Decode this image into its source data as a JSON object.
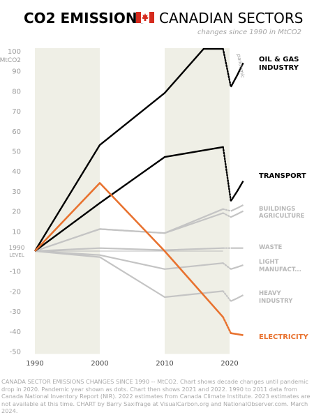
{
  "header": {
    "title_left": "CO2 EMISSIONS",
    "title_right": "CANADIAN SECTORS",
    "subtitle": "changes since 1990 in MtCO2"
  },
  "colors": {
    "dark": "#000000",
    "light": "#c4c4c4",
    "electric": "#e8722f",
    "band": "#efefe6",
    "axis_text": "#9a9a9a",
    "flag_red": "#d52b1e"
  },
  "chart_data": {
    "type": "line",
    "ylim": [
      -50,
      100
    ],
    "yticks": [
      -50,
      -40,
      -30,
      -20,
      -10,
      0,
      10,
      20,
      30,
      40,
      50,
      60,
      70,
      80,
      90,
      100
    ],
    "ytick_labels": [
      "-50",
      "-40",
      "-30",
      "-20",
      "-10",
      "0",
      "10",
      "20",
      "30",
      "40",
      "50",
      "60",
      "70",
      "80",
      "90",
      "100"
    ],
    "y_unit_label": "MtCO2",
    "zero_label_top": "1990",
    "zero_label_bottom": "LEVEL",
    "xticks": [
      "1990",
      "2000",
      "2010",
      "2020"
    ],
    "pandemic_label": "pandemic",
    "shaded_decades": [
      "1990-2000",
      "2010-2020"
    ],
    "series": [
      {
        "name": "OIL & GAS INDUSTRY",
        "group": "dark",
        "x": [
          1990,
          2000,
          2010,
          2016,
          2019
        ],
        "y": [
          0,
          53,
          79,
          101,
          101
        ],
        "pandemic_y": 82,
        "recent": [
          82,
          94
        ]
      },
      {
        "name": "TRANSPORT",
        "group": "dark",
        "x": [
          1990,
          2000,
          2010,
          2019
        ],
        "y": [
          0,
          24,
          47,
          52
        ],
        "pandemic_y": 25,
        "recent": [
          25,
          35
        ]
      },
      {
        "name": "BUILDINGS",
        "group": "light",
        "x": [
          1990,
          2000,
          2010,
          2019
        ],
        "y": [
          0,
          11,
          9,
          21
        ],
        "pandemic_y": 20,
        "recent": [
          20,
          23
        ]
      },
      {
        "name": "AGRICULTURE",
        "group": "light",
        "x": [
          1990,
          2000,
          2010,
          2019
        ],
        "y": [
          0,
          11,
          9,
          19
        ],
        "pandemic_y": 17,
        "recent": [
          17,
          20
        ]
      },
      {
        "name": "WASTE",
        "group": "light",
        "x": [
          1990,
          2000,
          2010,
          2019
        ],
        "y": [
          0,
          1.5,
          0.5,
          1.5
        ],
        "pandemic_y": 1.5,
        "recent": [
          1.5,
          1.5
        ]
      },
      {
        "name": "LIGHT MANUFACT...",
        "group": "light",
        "x": [
          1990,
          2000,
          2010,
          2019
        ],
        "y": [
          0,
          -2,
          -9,
          -6
        ],
        "pandemic_y": -9,
        "recent": [
          -9,
          -7
        ]
      },
      {
        "name": "HEAVY INDUSTRY",
        "group": "light",
        "x": [
          1990,
          2000,
          2010,
          2019
        ],
        "y": [
          0,
          -3,
          -23,
          -20
        ],
        "pandemic_y": -25,
        "recent": [
          -25,
          -22
        ]
      },
      {
        "name": "ELECTRICITY",
        "group": "electric",
        "x": [
          1990,
          2000,
          2010,
          2019
        ],
        "y": [
          0,
          34,
          0,
          -33
        ],
        "pandemic_y": -41,
        "recent": [
          -41,
          -42
        ]
      }
    ]
  },
  "caption": "CANADA SECTOR EMISSIONS CHANGES SINCE 1990 -- MtCO2. Chart shows decade changes until pandemic drop in 2020. Pandemic year shown as dots. Chart then shows 2021 and 2022. 1990 to 2011 data from Canada National Inventory Report (NIR). 2022 estimates from Canada Climate Institute. 2023 estimates are not available at this time. CHART by Barry Saxifrage at VisualCarbon.org and NationalObserver.com. March 2024."
}
